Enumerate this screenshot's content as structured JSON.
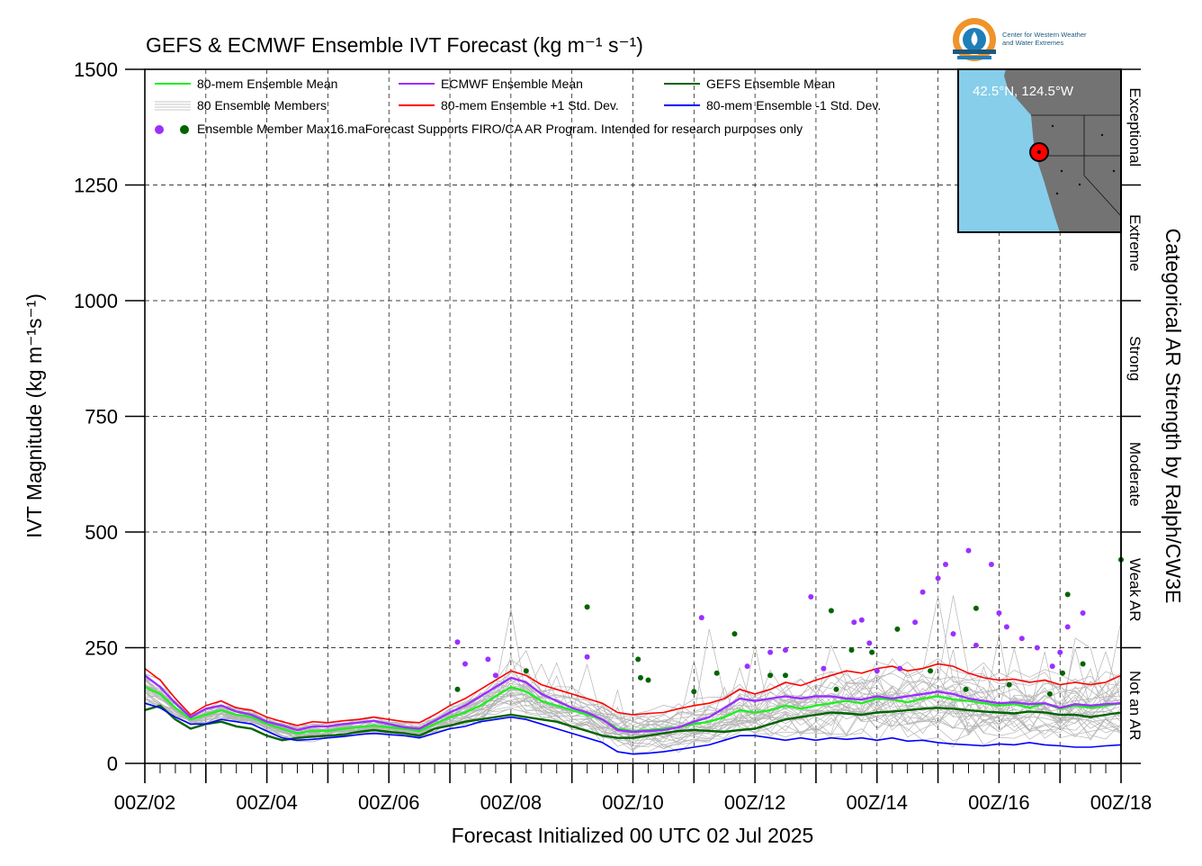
{
  "logo": {
    "line1": "Center for Western Weather",
    "line2": "and Water Extremes",
    "colors": {
      "orange": "#f0932b",
      "blue": "#1e7fb8",
      "dark": "#1c5a80"
    }
  },
  "inset": {
    "label": "42.5°N, 124.5°W",
    "ocean_color": "#87ceeb",
    "land_color": "#737373"
  },
  "legend": {
    "mean80": "80-mem Ensemble Mean",
    "ecmwf_mean": "ECMWF Ensemble Mean",
    "gefs_mean": "GEFS Ensemble Mean",
    "members": "80 Ensemble Members",
    "plus_std": "80-mem Ensemble +1 Std. Dev.",
    "minus_std": "80-mem Ensemble -1 Std. Dev.",
    "max_line": "Ensemble Member Max16.maForecast Supports FIRO/CA AR Program. Intended for research purposes only"
  },
  "chart_data": {
    "type": "line",
    "title": "GEFS & ECMWF Ensemble IVT Forecast (kg m⁻¹ s⁻¹)",
    "xlabel": "Forecast Initialized 00 UTC 02 Jul 2025",
    "ylabel": "IVT Magnitude (kg m⁻¹s⁻¹)",
    "right_label": "Categorical AR Strength by Ralph/CW3E",
    "x_unit": "hours since 00Z/02",
    "xlim": [
      0,
      384
    ],
    "ylim": [
      0,
      1500
    ],
    "yticks": [
      0,
      250,
      500,
      750,
      1000,
      1250,
      1500
    ],
    "xtick_labels": [
      "00Z/02",
      "00Z/04",
      "00Z/06",
      "00Z/08",
      "00Z/10",
      "00Z/12",
      "00Z/14",
      "00Z/16",
      "00Z/18"
    ],
    "grid": true,
    "legend_position": "top-left",
    "categories": [
      {
        "label": "Not an AR",
        "from": 0,
        "to": 250
      },
      {
        "label": "Weak AR",
        "from": 250,
        "to": 500
      },
      {
        "label": "Moderate",
        "from": 500,
        "to": 750
      },
      {
        "label": "Strong",
        "from": 750,
        "to": 1000
      },
      {
        "label": "Extreme",
        "from": 1000,
        "to": 1250
      },
      {
        "label": "Exceptional",
        "from": 1250,
        "to": 1500
      }
    ],
    "series": [
      {
        "name": "80-mem Ensemble Mean",
        "color": "#22ee22",
        "x": [
          0,
          6,
          12,
          18,
          24,
          30,
          36,
          42,
          48,
          54,
          60,
          66,
          72,
          78,
          84,
          90,
          96,
          102,
          108,
          114,
          120,
          126,
          132,
          138,
          144,
          150,
          156,
          162,
          168,
          174,
          180,
          186,
          192,
          198,
          204,
          210,
          216,
          222,
          228,
          234,
          240,
          246,
          252,
          258,
          264,
          270,
          276,
          282,
          288,
          294,
          300,
          306,
          312,
          318,
          324,
          330,
          336,
          342,
          348,
          354,
          360,
          366,
          372,
          378,
          384
        ],
        "values": [
          165,
          150,
          120,
          95,
          105,
          115,
          105,
          100,
          85,
          75,
          65,
          70,
          70,
          75,
          78,
          82,
          78,
          75,
          70,
          85,
          100,
          110,
          125,
          145,
          165,
          155,
          135,
          125,
          115,
          105,
          95,
          75,
          70,
          72,
          75,
          78,
          85,
          90,
          100,
          115,
          110,
          115,
          125,
          118,
          125,
          130,
          135,
          130,
          140,
          138,
          132,
          140,
          145,
          138,
          135,
          130,
          125,
          128,
          120,
          130,
          118,
          125,
          120,
          125,
          130
        ]
      },
      {
        "name": "ECMWF Ensemble Mean",
        "color": "#9b30ff",
        "x": [
          0,
          6,
          12,
          18,
          24,
          30,
          36,
          42,
          48,
          54,
          60,
          66,
          72,
          78,
          84,
          90,
          96,
          102,
          108,
          114,
          120,
          126,
          132,
          138,
          144,
          150,
          156,
          162,
          168,
          174,
          180,
          186,
          192,
          198,
          204,
          210,
          216,
          222,
          228,
          234,
          240,
          246,
          252,
          258,
          264,
          270,
          276,
          282,
          288,
          294,
          300,
          306,
          312,
          318,
          324,
          330,
          336,
          342,
          348,
          354,
          360,
          366,
          372,
          378,
          384
        ],
        "values": [
          190,
          165,
          130,
          100,
          118,
          125,
          112,
          105,
          90,
          82,
          72,
          80,
          80,
          85,
          88,
          92,
          85,
          78,
          75,
          92,
          110,
          125,
          145,
          165,
          185,
          175,
          150,
          135,
          120,
          110,
          95,
          72,
          68,
          70,
          72,
          78,
          90,
          100,
          120,
          140,
          135,
          140,
          145,
          140,
          145,
          145,
          140,
          138,
          145,
          140,
          145,
          150,
          155,
          150,
          140,
          135,
          130,
          132,
          128,
          130,
          120,
          128,
          125,
          128,
          130
        ]
      },
      {
        "name": "GEFS Ensemble Mean",
        "color": "#006400",
        "x": [
          0,
          6,
          12,
          18,
          24,
          30,
          36,
          42,
          48,
          54,
          60,
          66,
          72,
          78,
          84,
          90,
          96,
          102,
          108,
          114,
          120,
          126,
          132,
          138,
          144,
          150,
          156,
          162,
          168,
          174,
          180,
          186,
          192,
          198,
          204,
          210,
          216,
          222,
          228,
          234,
          240,
          246,
          252,
          258,
          264,
          270,
          276,
          282,
          288,
          294,
          300,
          306,
          312,
          318,
          324,
          330,
          336,
          342,
          348,
          354,
          360,
          366,
          372,
          378,
          384
        ],
        "values": [
          115,
          125,
          95,
          75,
          85,
          90,
          80,
          75,
          60,
          50,
          55,
          58,
          60,
          62,
          68,
          72,
          68,
          65,
          60,
          75,
          82,
          90,
          95,
          100,
          105,
          100,
          95,
          90,
          80,
          70,
          60,
          55,
          55,
          60,
          65,
          70,
          72,
          70,
          68,
          72,
          75,
          85,
          95,
          100,
          105,
          110,
          108,
          105,
          110,
          112,
          115,
          118,
          120,
          118,
          115,
          112,
          110,
          108,
          112,
          110,
          105,
          105,
          100,
          105,
          110
        ]
      },
      {
        "name": "80-mem Ensemble +1 Std. Dev.",
        "color": "#ff0000",
        "x": [
          0,
          6,
          12,
          18,
          24,
          30,
          36,
          42,
          48,
          54,
          60,
          66,
          72,
          78,
          84,
          90,
          96,
          102,
          108,
          114,
          120,
          126,
          132,
          138,
          144,
          150,
          156,
          162,
          168,
          174,
          180,
          186,
          192,
          198,
          204,
          210,
          216,
          222,
          228,
          234,
          240,
          246,
          252,
          258,
          264,
          270,
          276,
          282,
          288,
          294,
          300,
          306,
          312,
          318,
          324,
          330,
          336,
          342,
          348,
          354,
          360,
          366,
          372,
          378,
          384
        ],
        "values": [
          205,
          180,
          140,
          105,
          125,
          135,
          120,
          115,
          100,
          90,
          82,
          90,
          88,
          92,
          95,
          100,
          95,
          90,
          88,
          105,
          125,
          140,
          160,
          180,
          200,
          190,
          170,
          160,
          150,
          140,
          130,
          110,
          105,
          108,
          110,
          118,
          125,
          130,
          140,
          160,
          150,
          160,
          175,
          168,
          180,
          190,
          200,
          195,
          205,
          210,
          200,
          205,
          215,
          210,
          195,
          185,
          180,
          182,
          175,
          180,
          170,
          175,
          170,
          175,
          190
        ]
      },
      {
        "name": "80-mem Ensemble -1 Std. Dev.",
        "color": "#0000ff",
        "x": [
          0,
          6,
          12,
          18,
          24,
          30,
          36,
          42,
          48,
          54,
          60,
          66,
          72,
          78,
          84,
          90,
          96,
          102,
          108,
          114,
          120,
          126,
          132,
          138,
          144,
          150,
          156,
          162,
          168,
          174,
          180,
          186,
          192,
          198,
          204,
          210,
          216,
          222,
          228,
          234,
          240,
          246,
          252,
          258,
          264,
          270,
          276,
          282,
          288,
          294,
          300,
          306,
          312,
          318,
          324,
          330,
          336,
          342,
          348,
          354,
          360,
          366,
          372,
          378,
          384
        ],
        "values": [
          130,
          120,
          100,
          85,
          85,
          95,
          90,
          85,
          70,
          55,
          50,
          52,
          55,
          58,
          62,
          65,
          62,
          60,
          55,
          65,
          75,
          80,
          90,
          95,
          100,
          95,
          85,
          75,
          65,
          55,
          45,
          25,
          20,
          22,
          25,
          30,
          35,
          40,
          50,
          60,
          60,
          55,
          50,
          55,
          50,
          55,
          52,
          55,
          50,
          55,
          48,
          50,
          45,
          42,
          40,
          38,
          42,
          40,
          45,
          40,
          38,
          35,
          35,
          38,
          40
        ]
      }
    ],
    "ensemble_members": {
      "name": "80 Ensemble Members",
      "color": "#b4b4b4"
    },
    "ensemble_max": {
      "ecmwf": {
        "color": "#9b30ff",
        "x": [
          123,
          126,
          135,
          138,
          174,
          219,
          237,
          246,
          252,
          262,
          267,
          279,
          282,
          285,
          288,
          297,
          303,
          306,
          312,
          315,
          318,
          324,
          327,
          333,
          336,
          339,
          345,
          351,
          357,
          360,
          363,
          369
        ],
        "y": [
          262,
          215,
          225,
          190,
          230,
          315,
          210,
          240,
          245,
          360,
          205,
          305,
          310,
          260,
          200,
          205,
          305,
          370,
          400,
          430,
          280,
          460,
          255,
          430,
          325,
          295,
          270,
          250,
          210,
          240,
          295,
          325
        ]
      },
      "gefs": {
        "color": "#006400",
        "x": [
          123,
          150,
          174,
          194,
          195,
          198,
          216,
          225,
          232,
          246,
          252,
          270,
          272,
          278,
          286,
          296,
          309,
          323,
          327,
          340,
          356,
          361,
          363,
          369,
          384
        ],
        "y": [
          160,
          200,
          338,
          225,
          185,
          180,
          155,
          195,
          280,
          190,
          190,
          330,
          160,
          245,
          240,
          290,
          200,
          160,
          335,
          170,
          150,
          195,
          365,
          215,
          440
        ]
      }
    }
  }
}
